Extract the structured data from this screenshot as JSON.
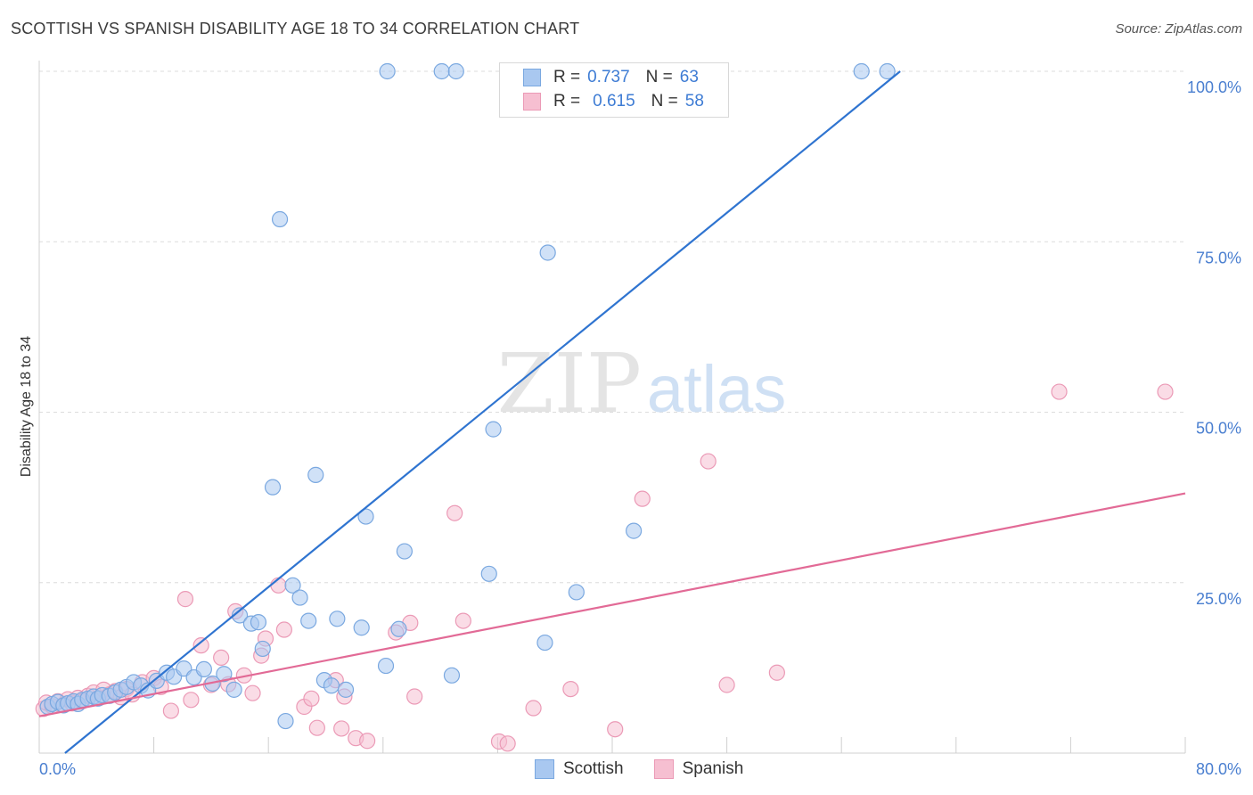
{
  "title": "SCOTTISH VS SPANISH DISABILITY AGE 18 TO 34 CORRELATION CHART",
  "source": "Source: ZipAtlas.com",
  "watermark": {
    "zip": "ZIP",
    "atlas": "atlas"
  },
  "colors": {
    "scottish_fill": "#a9c8f0",
    "scottish_stroke": "#7aa8e0",
    "scottish_line": "#2f74d0",
    "spanish_fill": "#f6bfd1",
    "spanish_stroke": "#eb9ab6",
    "spanish_line": "#e26a96",
    "grid": "#dcdcdc",
    "tick_text": "#4a7fd0"
  },
  "legend": {
    "rows": [
      {
        "series": "Scottish",
        "r_label": "R =",
        "r_value": "0.737",
        "n_label": "N =",
        "n_value": "63"
      },
      {
        "series": "Spanish",
        "r_label": "R =",
        "r_value": "0.615",
        "n_label": "N =",
        "n_value": "58"
      }
    ]
  },
  "bottom_legend": [
    "Scottish",
    "Spanish"
  ],
  "chart_data": {
    "type": "scatter",
    "title": "SCOTTISH VS SPANISH DISABILITY AGE 18 TO 34 CORRELATION CHART",
    "xlabel": "",
    "ylabel": "Disability Age 18 to 34",
    "xlim": [
      0,
      80
    ],
    "ylim": [
      0,
      100
    ],
    "x_tick_labels": [
      "0.0%",
      "80.0%"
    ],
    "y_ticks": [
      25,
      50,
      75,
      100
    ],
    "y_tick_labels": [
      "25.0%",
      "50.0%",
      "75.0%",
      "100.0%"
    ],
    "grid": true,
    "legend_position": "top-center",
    "series": [
      {
        "name": "Scottish",
        "trend": {
          "x": [
            1.8,
            60.1
          ],
          "y": [
            0,
            100
          ]
        },
        "points": [
          [
            0.6,
            6.8
          ],
          [
            0.9,
            7.2
          ],
          [
            1.3,
            7.5
          ],
          [
            1.7,
            7.0
          ],
          [
            2.0,
            7.3
          ],
          [
            2.4,
            7.6
          ],
          [
            2.7,
            7.2
          ],
          [
            3.0,
            7.8
          ],
          [
            3.4,
            8.0
          ],
          [
            3.8,
            8.3
          ],
          [
            4.1,
            8.0
          ],
          [
            4.4,
            8.5
          ],
          [
            4.9,
            8.4
          ],
          [
            5.3,
            8.9
          ],
          [
            5.7,
            9.3
          ],
          [
            6.1,
            9.7
          ],
          [
            6.6,
            10.4
          ],
          [
            7.1,
            9.9
          ],
          [
            7.6,
            9.2
          ],
          [
            8.2,
            10.6
          ],
          [
            8.9,
            11.8
          ],
          [
            9.4,
            11.2
          ],
          [
            10.1,
            12.4
          ],
          [
            10.8,
            11.1
          ],
          [
            11.5,
            12.3
          ],
          [
            12.1,
            10.2
          ],
          [
            12.9,
            11.6
          ],
          [
            13.6,
            9.3
          ],
          [
            14.0,
            20.2
          ],
          [
            14.8,
            19.0
          ],
          [
            15.3,
            19.2
          ],
          [
            15.6,
            15.3
          ],
          [
            16.3,
            39.0
          ],
          [
            16.8,
            78.3
          ],
          [
            17.2,
            4.7
          ],
          [
            17.7,
            24.6
          ],
          [
            18.2,
            22.8
          ],
          [
            18.8,
            19.4
          ],
          [
            19.3,
            40.8
          ],
          [
            19.9,
            10.7
          ],
          [
            20.4,
            9.9
          ],
          [
            20.8,
            19.7
          ],
          [
            21.4,
            9.3
          ],
          [
            22.5,
            18.4
          ],
          [
            22.8,
            34.7
          ],
          [
            24.2,
            12.8
          ],
          [
            25.1,
            18.2
          ],
          [
            25.5,
            29.6
          ],
          [
            24.3,
            100
          ],
          [
            28.1,
            100
          ],
          [
            29.1,
            100
          ],
          [
            28.8,
            11.4
          ],
          [
            31.4,
            26.3
          ],
          [
            31.7,
            47.5
          ],
          [
            35.5,
            73.4
          ],
          [
            35.3,
            16.2
          ],
          [
            37.5,
            23.6
          ],
          [
            41.5,
            32.6
          ],
          [
            57.4,
            100
          ],
          [
            59.2,
            100
          ]
        ]
      },
      {
        "name": "Spanish",
        "trend": {
          "x": [
            0,
            80
          ],
          "y": [
            5.4,
            38.1
          ]
        },
        "points": [
          [
            0.3,
            6.5
          ],
          [
            0.5,
            7.4
          ],
          [
            0.9,
            6.9
          ],
          [
            1.3,
            7.6
          ],
          [
            1.7,
            7.1
          ],
          [
            2.0,
            7.9
          ],
          [
            2.3,
            7.3
          ],
          [
            2.7,
            8.1
          ],
          [
            3.0,
            7.6
          ],
          [
            3.4,
            8.4
          ],
          [
            3.8,
            8.9
          ],
          [
            4.2,
            8.1
          ],
          [
            4.5,
            9.3
          ],
          [
            4.9,
            8.6
          ],
          [
            5.3,
            9.1
          ],
          [
            5.7,
            8.2
          ],
          [
            6.1,
            9.4
          ],
          [
            6.5,
            8.6
          ],
          [
            7.2,
            10.4
          ],
          [
            8.0,
            11.0
          ],
          [
            8.5,
            9.7
          ],
          [
            9.2,
            6.2
          ],
          [
            10.2,
            22.6
          ],
          [
            10.6,
            7.8
          ],
          [
            11.3,
            15.8
          ],
          [
            12.0,
            10.0
          ],
          [
            12.7,
            14.0
          ],
          [
            13.2,
            10.1
          ],
          [
            13.7,
            20.8
          ],
          [
            14.3,
            11.4
          ],
          [
            14.9,
            8.8
          ],
          [
            15.5,
            14.3
          ],
          [
            15.8,
            16.8
          ],
          [
            16.7,
            24.6
          ],
          [
            17.1,
            18.1
          ],
          [
            18.5,
            6.8
          ],
          [
            19.0,
            8.0
          ],
          [
            19.4,
            3.7
          ],
          [
            20.7,
            10.7
          ],
          [
            21.1,
            3.6
          ],
          [
            21.3,
            8.3
          ],
          [
            22.1,
            2.2
          ],
          [
            22.9,
            1.8
          ],
          [
            24.9,
            17.7
          ],
          [
            25.9,
            19.1
          ],
          [
            26.2,
            8.3
          ],
          [
            29.0,
            35.2
          ],
          [
            29.6,
            19.4
          ],
          [
            32.1,
            1.7
          ],
          [
            32.7,
            1.4
          ],
          [
            34.5,
            6.6
          ],
          [
            37.1,
            9.4
          ],
          [
            40.2,
            3.5
          ],
          [
            42.1,
            37.3
          ],
          [
            46.7,
            42.8
          ],
          [
            48.0,
            10.0
          ],
          [
            51.5,
            11.8
          ],
          [
            71.2,
            53.0
          ],
          [
            78.6,
            53.0
          ]
        ]
      }
    ]
  }
}
